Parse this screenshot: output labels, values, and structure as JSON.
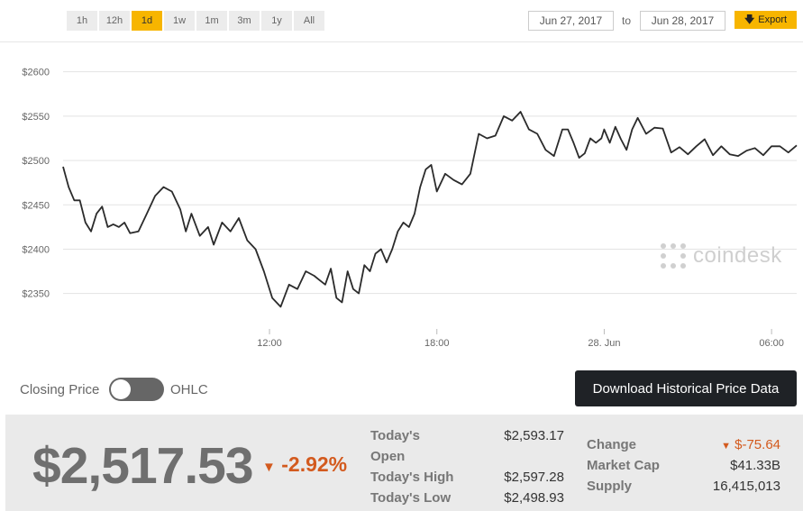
{
  "toolbar": {
    "ranges": [
      "1h",
      "12h",
      "1d",
      "1w",
      "1m",
      "3m",
      "1y",
      "All"
    ],
    "active_range": "1d",
    "date_from": "Jun 27, 2017",
    "date_separator": "to",
    "date_to": "Jun 28, 2017",
    "export_label": "Export",
    "export_icon": "download-arrow-icon"
  },
  "watermark": {
    "text": "coindesk"
  },
  "chart_data": {
    "type": "line",
    "title": "",
    "xlabel": "",
    "ylabel": "",
    "ylim": [
      2310,
      2620
    ],
    "yticks": [
      "$2350",
      "$2400",
      "$2450",
      "$2500",
      "$2550",
      "$2600"
    ],
    "ytick_values": [
      2350,
      2400,
      2450,
      2500,
      2550,
      2600
    ],
    "xticks": [
      "12:00",
      "18:00",
      "28. Jun",
      "06:00"
    ],
    "xtick_hours": [
      12,
      18,
      24,
      30
    ],
    "xlim_hours": [
      4.6,
      30.9
    ],
    "grid": "horizontal",
    "line_color": "#2b2b2b",
    "series": [
      {
        "x": [
          4.6,
          4.8,
          5.0,
          5.2,
          5.4,
          5.6,
          5.8,
          6.0,
          6.2,
          6.4,
          6.6,
          6.8,
          7.0,
          7.3,
          7.6,
          7.9,
          8.2,
          8.5,
          8.8,
          9.0,
          9.2,
          9.5,
          9.8,
          10.0,
          10.3,
          10.6,
          10.9,
          11.2,
          11.5,
          11.8,
          12.1,
          12.4,
          12.7,
          13.0,
          13.3,
          13.6,
          13.8,
          14.0,
          14.2,
          14.4,
          14.6,
          14.8,
          15.0,
          15.2,
          15.4,
          15.6,
          15.8,
          16.0,
          16.2,
          16.4,
          16.6,
          16.8,
          17.0,
          17.2,
          17.4,
          17.6,
          17.8,
          18.0,
          18.3,
          18.6,
          18.9,
          19.2,
          19.5,
          19.8,
          20.1,
          20.4,
          20.7,
          21.0,
          21.3,
          21.6,
          21.9,
          22.2,
          22.5,
          22.7,
          22.9,
          23.1,
          23.3,
          23.5,
          23.7,
          23.9,
          24.0,
          24.2,
          24.4,
          24.6,
          24.8,
          25.0,
          25.2,
          25.5,
          25.8,
          26.1,
          26.4,
          26.7,
          27.0,
          27.3,
          27.6,
          27.9,
          28.2,
          28.5,
          28.8,
          29.1,
          29.4,
          29.7,
          30.0,
          30.3,
          30.6,
          30.9
        ],
        "y": [
          2493,
          2470,
          2455,
          2455,
          2430,
          2420,
          2440,
          2448,
          2425,
          2428,
          2425,
          2430,
          2418,
          2420,
          2440,
          2460,
          2470,
          2465,
          2445,
          2420,
          2440,
          2415,
          2425,
          2405,
          2430,
          2420,
          2435,
          2410,
          2400,
          2375,
          2345,
          2335,
          2360,
          2355,
          2375,
          2370,
          2365,
          2360,
          2378,
          2345,
          2340,
          2375,
          2355,
          2350,
          2382,
          2375,
          2395,
          2400,
          2385,
          2400,
          2420,
          2430,
          2425,
          2440,
          2470,
          2490,
          2495,
          2465,
          2485,
          2478,
          2473,
          2485,
          2530,
          2525,
          2528,
          2550,
          2545,
          2555,
          2535,
          2530,
          2512,
          2505,
          2535,
          2535,
          2520,
          2503,
          2508,
          2525,
          2520,
          2525,
          2535,
          2520,
          2538,
          2524,
          2512,
          2535,
          2548,
          2530,
          2537,
          2536,
          2509,
          2515,
          2507,
          2516,
          2524,
          2506,
          2516,
          2507,
          2505,
          2511,
          2514,
          2506,
          2516,
          2516,
          2509,
          2517
        ]
      }
    ]
  },
  "controls": {
    "closing_price_label": "Closing Price",
    "ohlc_label": "OHLC",
    "download_label": "Download Historical Price Data"
  },
  "stats": {
    "price": "$2,517.53",
    "pct_change": "-2.92%",
    "change_color": "#d35a1e",
    "today_open_label_line1": "Today's",
    "today_open_label_line2": "Open",
    "today_open_value": "$2,593.17",
    "today_high_label": "Today's High",
    "today_high_value": "$2,597.28",
    "today_low_label": "Today's Low",
    "today_low_value": "$2,498.93",
    "change_label": "Change",
    "change_value": "$-75.64",
    "market_cap_label": "Market Cap",
    "market_cap_value": "$41.33B",
    "supply_label": "Supply",
    "supply_value": "16,415,013"
  }
}
